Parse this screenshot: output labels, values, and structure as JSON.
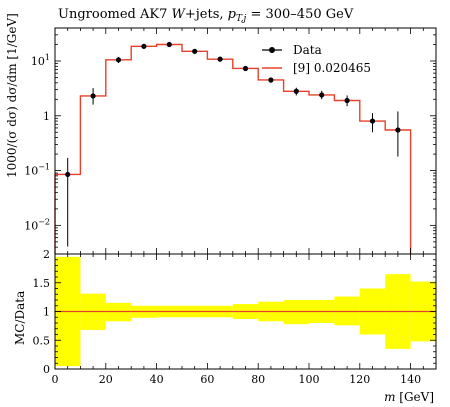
{
  "chart_data": {
    "type": "line",
    "title": {
      "prefix": "Ungroomed AK7 ",
      "w": "W",
      "jets": "+jets, ",
      "pt": "p",
      "pt_sub": "T,j",
      "range": " = 300–450 GeV"
    },
    "main": {
      "ylabel": "1000/(σ dσ) dσ/dm [1/GeV]",
      "yscale": "log",
      "ylim": [
        0.003,
        40
      ],
      "y_ticks": [
        {
          "value": 10,
          "base": "10",
          "exp": "1"
        },
        {
          "value": 1,
          "base": "1",
          "exp": ""
        },
        {
          "value": 0.1,
          "base": "10",
          "exp": "−1"
        },
        {
          "value": 0.01,
          "base": "10",
          "exp": "−2"
        }
      ],
      "legend": {
        "position": "top-right",
        "data_label": "Data",
        "mc_label": "[9] 0.020465"
      },
      "colors": {
        "data": "#000000",
        "mc": "#e8402a"
      }
    },
    "xlabel": "m [GeV]",
    "xlim": [
      0,
      150
    ],
    "x_ticks": [
      0,
      20,
      40,
      60,
      80,
      100,
      120,
      140
    ],
    "bin_edges": [
      0,
      10,
      20,
      30,
      40,
      50,
      60,
      70,
      80,
      90,
      100,
      110,
      120,
      130,
      140
    ],
    "series": [
      {
        "name": "Data",
        "x": [
          5,
          15,
          25,
          35,
          45,
          55,
          65,
          75,
          85,
          95,
          105,
          115,
          125,
          135
        ],
        "values": [
          0.085,
          2.3,
          10.5,
          18.5,
          20.0,
          15.0,
          10.8,
          7.3,
          4.5,
          2.8,
          2.4,
          1.9,
          0.8,
          0.55
        ],
        "err_low": [
          0.0041,
          1.6,
          9.2,
          17.4,
          18.8,
          14.2,
          10.1,
          6.75,
          4.0,
          2.35,
          2.0,
          1.5,
          0.5,
          0.18
        ],
        "err_high": [
          0.17,
          3.2,
          11.8,
          19.7,
          21.3,
          15.9,
          11.5,
          7.9,
          5.0,
          3.25,
          2.85,
          2.35,
          1.12,
          1.2
        ]
      },
      {
        "name": "[9] 0.020465",
        "values": [
          0.085,
          2.3,
          10.5,
          18.5,
          20.0,
          15.0,
          10.8,
          7.3,
          4.5,
          2.8,
          2.4,
          1.9,
          0.8,
          0.55
        ]
      }
    ],
    "ratio": {
      "ylabel": "MC/Data",
      "ylim": [
        0,
        2
      ],
      "y_ticks": [
        "0",
        "0.5",
        "1",
        "1.5",
        "2"
      ],
      "band_low": [
        0.05,
        0.68,
        0.83,
        0.89,
        0.9,
        0.9,
        0.9,
        0.87,
        0.83,
        0.78,
        0.8,
        0.76,
        0.6,
        0.35,
        0.48
      ],
      "band_high": [
        1.95,
        1.31,
        1.15,
        1.1,
        1.1,
        1.1,
        1.1,
        1.13,
        1.17,
        1.2,
        1.2,
        1.26,
        1.4,
        1.65,
        1.52
      ],
      "band_color": "#ffff00",
      "line_value": 1.0
    }
  }
}
